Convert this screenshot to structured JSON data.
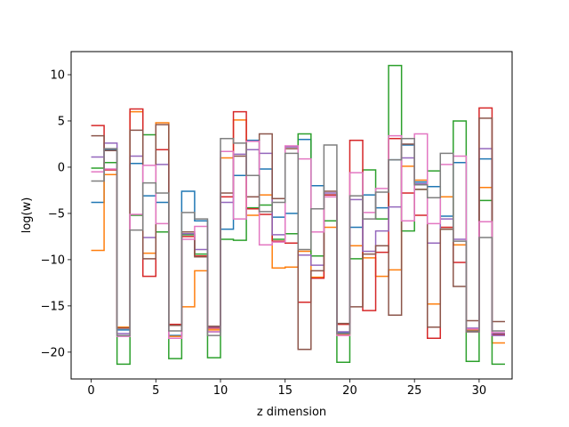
{
  "chart_data": {
    "type": "line",
    "step": "post",
    "xlabel": "z dimension",
    "ylabel": "log(w)",
    "xlim": [
      -1.55,
      32.55
    ],
    "ylim": [
      -22.9,
      12.5
    ],
    "xticks": [
      0,
      5,
      10,
      15,
      20,
      25,
      30
    ],
    "yticks": [
      -20,
      -15,
      -10,
      -5,
      0,
      5,
      10
    ],
    "legend": "none",
    "grid": false,
    "series": [
      {
        "color": "#1f77b4",
        "values": [
          -3.8,
          1.9,
          -17.6,
          0.4,
          -3.1,
          -3.8,
          -18.2,
          -2.6,
          -5.8,
          -17.8,
          -6.7,
          -0.9,
          2.9,
          -0.2,
          -5.4,
          -5.0,
          3.0,
          -2.0,
          -3.0,
          -17.9,
          -6.5,
          -3.0,
          -4.4,
          0.8,
          2.4,
          -1.6,
          -2.1,
          -5.3,
          0.5,
          -17.7,
          0.9,
          -18.0
        ]
      },
      {
        "color": "#ff7f0e",
        "values": [
          -9.0,
          -0.8,
          -17.3,
          6.0,
          -9.3,
          4.8,
          -18.3,
          -15.1,
          -11.2,
          -17.6,
          1.0,
          5.1,
          -5.2,
          -3.0,
          -10.9,
          -10.8,
          -9.1,
          -11.9,
          -6.5,
          -18.1,
          -8.5,
          -9.8,
          -11.8,
          -11.1,
          0.1,
          -1.4,
          -14.8,
          -3.2,
          -8.4,
          -17.6,
          -2.2,
          -19.0
        ]
      },
      {
        "color": "#2ca02c",
        "values": [
          -0.1,
          0.5,
          -21.3,
          -5.2,
          3.5,
          -7.0,
          -20.7,
          -7.3,
          -9.4,
          -20.6,
          -7.8,
          -7.9,
          -4.4,
          -4.1,
          -7.8,
          -7.2,
          3.6,
          -9.6,
          -5.8,
          -21.1,
          -9.9,
          -0.3,
          -5.6,
          11.0,
          -6.9,
          -2.4,
          -0.4,
          -6.7,
          5.0,
          -21.0,
          -3.6,
          -21.3
        ]
      },
      {
        "color": "#d62728",
        "values": [
          4.5,
          -0.3,
          -17.4,
          6.3,
          -11.8,
          1.9,
          -17.0,
          -7.5,
          -9.6,
          -17.4,
          -3.2,
          6.0,
          -4.5,
          -5.1,
          -8.0,
          -8.2,
          -14.6,
          -12.0,
          -3.0,
          -17.0,
          2.9,
          -15.5,
          -9.2,
          3.1,
          -2.8,
          -5.2,
          -18.5,
          -6.5,
          -10.3,
          -17.8,
          6.4,
          -18.1
        ]
      },
      {
        "color": "#9467bd",
        "values": [
          1.1,
          2.6,
          -18.0,
          1.2,
          -7.6,
          0.3,
          -18.5,
          -7.2,
          -8.9,
          -17.3,
          -3.8,
          1.4,
          1.9,
          1.5,
          -7.3,
          2.2,
          -9.5,
          -10.6,
          -2.8,
          -17.8,
          -3.5,
          -9.1,
          -6.9,
          -4.3,
          1.0,
          -1.8,
          -8.2,
          -5.6,
          -7.8,
          -17.4,
          2.0,
          -18.2
        ]
      },
      {
        "color": "#8c564b",
        "values": [
          3.4,
          1.8,
          -17.4,
          4.0,
          -9.9,
          4.6,
          -17.1,
          -7.0,
          -9.7,
          -17.2,
          -2.8,
          1.2,
          -3.2,
          3.6,
          -3.4,
          2.0,
          -19.7,
          -11.2,
          -2.6,
          -16.9,
          -15.1,
          -9.4,
          -8.5,
          -16.0,
          2.5,
          -2.4,
          -17.3,
          -6.7,
          -12.9,
          -16.6,
          5.3,
          -16.7
        ]
      },
      {
        "color": "#e377c2",
        "values": [
          -0.5,
          -0.2,
          -18.3,
          -5.1,
          0.2,
          -6.1,
          -18.5,
          -7.8,
          -6.4,
          -17.8,
          1.7,
          -5.6,
          2.8,
          -8.4,
          -8.1,
          2.3,
          0.9,
          -7.0,
          -3.2,
          -18.2,
          -0.6,
          -4.9,
          -2.3,
          3.4,
          -5.8,
          3.6,
          -6.1,
          0.3,
          1.2,
          -17.5,
          -5.9,
          -17.9
        ]
      },
      {
        "color": "#7f7f7f",
        "values": [
          -1.5,
          2.0,
          -18.2,
          -6.8,
          -1.7,
          -2.8,
          -17.7,
          -4.9,
          -5.6,
          -18.2,
          3.1,
          2.6,
          -0.9,
          -4.8,
          -3.8,
          1.5,
          -8.9,
          -4.5,
          2.4,
          -18.0,
          -3.1,
          -5.6,
          -2.7,
          0.8,
          3.1,
          -1.9,
          -3.3,
          1.5,
          -8.0,
          -17.8,
          -7.6,
          -17.7
        ]
      }
    ]
  }
}
